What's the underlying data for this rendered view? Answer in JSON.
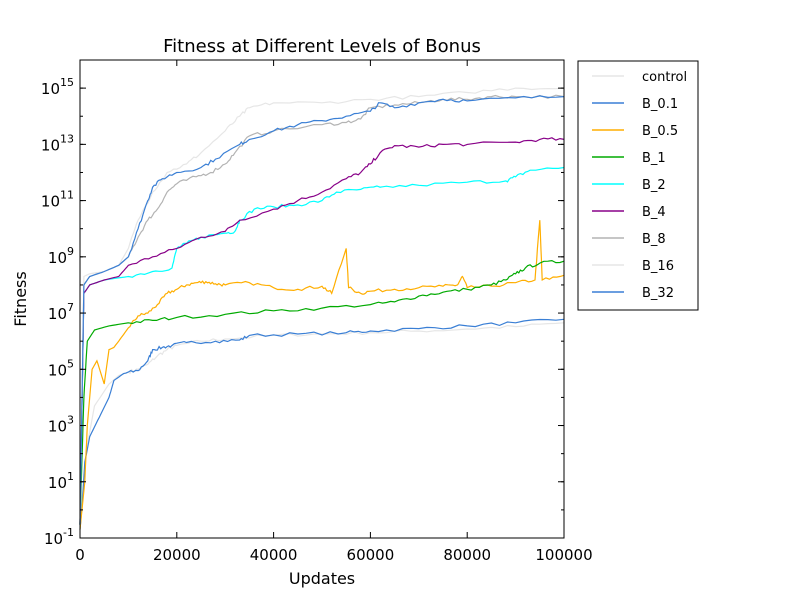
{
  "chart_data": {
    "type": "line",
    "title": "Fitness at Different Levels of Bonus",
    "xlabel": "Updates",
    "ylabel": "Fitness",
    "xlim": [
      0,
      100000
    ],
    "ylim": [
      0.1,
      1e+16
    ],
    "yscale": "log",
    "grid": false,
    "legend_position": "outside-right-top",
    "x_ticks": [
      {
        "value": 0,
        "label": "0"
      },
      {
        "value": 20000,
        "label": "20000"
      },
      {
        "value": 40000,
        "label": "40000"
      },
      {
        "value": 60000,
        "label": "60000"
      },
      {
        "value": 80000,
        "label": "80000"
      },
      {
        "value": 100000,
        "label": "100000"
      }
    ],
    "y_ticks": [
      {
        "value": 0.1,
        "base": "10",
        "exp": "-1"
      },
      {
        "value": 10,
        "base": "10",
        "exp": "1"
      },
      {
        "value": 1000,
        "base": "10",
        "exp": "3"
      },
      {
        "value": 100000,
        "base": "10",
        "exp": "5"
      },
      {
        "value": 10000000,
        "base": "10",
        "exp": "7"
      },
      {
        "value": 1000000000,
        "base": "10",
        "exp": "9"
      },
      {
        "value": 100000000000,
        "base": "10",
        "exp": "11"
      },
      {
        "value": 10000000000000,
        "base": "10",
        "exp": "13"
      },
      {
        "value": 1000000000000000,
        "base": "10",
        "exp": "15"
      }
    ],
    "series": [
      {
        "name": "control",
        "color": "#e6e6e6",
        "points": [
          [
            0,
            0.3
          ],
          [
            500,
            3
          ],
          [
            1500,
            200
          ],
          [
            3000,
            5000
          ],
          [
            6000,
            30000
          ],
          [
            8000,
            60000
          ],
          [
            10000,
            80000
          ],
          [
            12000,
            100000
          ],
          [
            14000,
            150000
          ],
          [
            16000,
            300000
          ],
          [
            18000,
            500000
          ],
          [
            20000,
            700000
          ],
          [
            25000,
            1000000
          ],
          [
            30000,
            1200000
          ],
          [
            40000,
            1600000
          ],
          [
            50000,
            1800000
          ],
          [
            60000,
            2000000
          ],
          [
            70000,
            2300000
          ],
          [
            80000,
            2700000
          ],
          [
            90000,
            3300000
          ],
          [
            100000,
            4500000
          ]
        ]
      },
      {
        "name": "B_0.1",
        "color": "#3a7fd5",
        "points": [
          [
            0,
            0.2
          ],
          [
            500,
            2
          ],
          [
            1000,
            50
          ],
          [
            2000,
            400
          ],
          [
            4000,
            2000
          ],
          [
            6000,
            10000
          ],
          [
            7000,
            40000
          ],
          [
            9000,
            70000
          ],
          [
            12000,
            90000
          ],
          [
            14000,
            200000
          ],
          [
            15000,
            500000
          ],
          [
            17000,
            600000
          ],
          [
            19000,
            700000
          ],
          [
            22000,
            900000
          ],
          [
            28000,
            1000000
          ],
          [
            33000,
            1100000
          ],
          [
            35000,
            1600000
          ],
          [
            45000,
            1800000
          ],
          [
            55000,
            2000000
          ],
          [
            60000,
            2300000
          ],
          [
            70000,
            2800000
          ],
          [
            80000,
            3500000
          ],
          [
            90000,
            4500000
          ],
          [
            100000,
            6000000
          ]
        ]
      },
      {
        "name": "B_0.5",
        "color": "#ffae00",
        "points": [
          [
            0,
            0.2
          ],
          [
            1000,
            10
          ],
          [
            1500,
            1000
          ],
          [
            2500,
            100000
          ],
          [
            3500,
            200000
          ],
          [
            5000,
            30000
          ],
          [
            6000,
            500000
          ],
          [
            7000,
            600000
          ],
          [
            8000,
            1000000
          ],
          [
            10000,
            3000000
          ],
          [
            12000,
            8000000
          ],
          [
            14000,
            10000000
          ],
          [
            16000,
            20000000
          ],
          [
            18000,
            50000000
          ],
          [
            20000,
            70000000
          ],
          [
            22000,
            100000000
          ],
          [
            24000,
            120000000
          ],
          [
            26000,
            130000000
          ],
          [
            28000,
            110000000
          ],
          [
            30000,
            100000000
          ],
          [
            35000,
            120000000
          ],
          [
            40000,
            80000000
          ],
          [
            45000,
            70000000
          ],
          [
            50000,
            90000000
          ],
          [
            52000,
            50000000
          ],
          [
            55000,
            2000000000
          ],
          [
            55500,
            80000000
          ],
          [
            58000,
            50000000
          ],
          [
            60000,
            60000000
          ],
          [
            65000,
            70000000
          ],
          [
            70000,
            80000000
          ],
          [
            75000,
            90000000
          ],
          [
            78000,
            100000000
          ],
          [
            79000,
            200000000
          ],
          [
            80000,
            80000000
          ],
          [
            85000,
            90000000
          ],
          [
            90000,
            120000000
          ],
          [
            94000,
            150000000
          ],
          [
            95000,
            20000000000
          ],
          [
            95500,
            150000000
          ],
          [
            100000,
            220000000
          ]
        ]
      },
      {
        "name": "B_1",
        "color": "#00aa00",
        "points": [
          [
            0,
            0.3
          ],
          [
            800,
            10000
          ],
          [
            1500,
            1000000
          ],
          [
            3000,
            2500000
          ],
          [
            6000,
            3500000
          ],
          [
            10000,
            4500000
          ],
          [
            15000,
            5500000
          ],
          [
            20000,
            7000000
          ],
          [
            30000,
            9000000
          ],
          [
            40000,
            12000000
          ],
          [
            50000,
            15000000
          ],
          [
            60000,
            20000000
          ],
          [
            65000,
            25000000
          ],
          [
            70000,
            40000000
          ],
          [
            75000,
            55000000
          ],
          [
            80000,
            70000000
          ],
          [
            85000,
            100000000
          ],
          [
            88000,
            150000000
          ],
          [
            90000,
            250000000
          ],
          [
            92000,
            400000000
          ],
          [
            95000,
            600000000
          ],
          [
            100000,
            700000000
          ]
        ]
      },
      {
        "name": "B_2",
        "color": "#00ffff",
        "points": [
          [
            0,
            0.3
          ],
          [
            800,
            50000000
          ],
          [
            2000,
            100000000
          ],
          [
            5000,
            150000000
          ],
          [
            10000,
            200000000
          ],
          [
            15000,
            300000000
          ],
          [
            19000,
            400000000
          ],
          [
            20000,
            2000000000
          ],
          [
            22000,
            3000000000
          ],
          [
            25000,
            5000000000
          ],
          [
            30000,
            7000000000
          ],
          [
            32000,
            8000000000
          ],
          [
            33000,
            20000000000
          ],
          [
            36000,
            50000000000
          ],
          [
            40000,
            60000000000
          ],
          [
            45000,
            70000000000
          ],
          [
            50000,
            100000000000
          ],
          [
            53000,
            200000000000
          ],
          [
            58000,
            250000000000
          ],
          [
            62000,
            300000000000
          ],
          [
            70000,
            350000000000
          ],
          [
            80000,
            450000000000
          ],
          [
            88000,
            500000000000
          ],
          [
            90000,
            700000000000
          ],
          [
            93000,
            1200000000000
          ],
          [
            100000,
            1500000000000
          ]
        ]
      },
      {
        "name": "B_4",
        "color": "#880088",
        "points": [
          [
            0,
            0.3
          ],
          [
            800,
            50000000
          ],
          [
            2000,
            100000000
          ],
          [
            5000,
            150000000
          ],
          [
            8000,
            200000000
          ],
          [
            10000,
            500000000
          ],
          [
            15000,
            1000000000
          ],
          [
            20000,
            2000000000
          ],
          [
            25000,
            5000000000
          ],
          [
            30000,
            8000000000
          ],
          [
            33000,
            20000000000
          ],
          [
            40000,
            50000000000
          ],
          [
            45000,
            100000000000
          ],
          [
            50000,
            200000000000
          ],
          [
            55000,
            600000000000
          ],
          [
            58000,
            1000000000000
          ],
          [
            60000,
            2000000000000
          ],
          [
            62000,
            5000000000000
          ],
          [
            65000,
            9000000000000
          ],
          [
            70000,
            8000000000000
          ],
          [
            75000,
            10000000000000
          ],
          [
            80000,
            10000000000000
          ],
          [
            90000,
            12000000000000
          ],
          [
            95000,
            15000000000000
          ],
          [
            100000,
            15000000000000
          ]
        ]
      },
      {
        "name": "B_8",
        "color": "#b3b3b3",
        "points": [
          [
            0,
            0.3
          ],
          [
            800,
            100000000
          ],
          [
            2000,
            200000000
          ],
          [
            5000,
            300000000
          ],
          [
            8000,
            500000000
          ],
          [
            10000,
            1000000000
          ],
          [
            12000,
            5000000000
          ],
          [
            14000,
            20000000000
          ],
          [
            16000,
            50000000000
          ],
          [
            18000,
            200000000000
          ],
          [
            20000,
            400000000000
          ],
          [
            24000,
            700000000000
          ],
          [
            27000,
            1000000000000
          ],
          [
            30000,
            2000000000000
          ],
          [
            32000,
            5000000000000
          ],
          [
            35000,
            20000000000000
          ],
          [
            40000,
            30000000000000
          ],
          [
            50000,
            50000000000000
          ],
          [
            55000,
            60000000000000
          ],
          [
            58000,
            80000000000000
          ],
          [
            60000,
            200000000000000
          ],
          [
            65000,
            250000000000000
          ],
          [
            70000,
            300000000000000
          ],
          [
            75000,
            400000000000000
          ],
          [
            80000,
            400000000000000
          ],
          [
            85000,
            500000000000000
          ],
          [
            90000,
            500000000000000
          ],
          [
            100000,
            500000000000000
          ]
        ]
      },
      {
        "name": "B_16",
        "color": "#e6e6e6",
        "points": [
          [
            0,
            0.3
          ],
          [
            800,
            200000000
          ],
          [
            2000,
            250000000
          ],
          [
            5000,
            300000000
          ],
          [
            8000,
            500000000
          ],
          [
            10000,
            2000000000
          ],
          [
            12000,
            20000000000
          ],
          [
            15000,
            200000000000
          ],
          [
            18000,
            1000000000000
          ],
          [
            22000,
            2000000000000
          ],
          [
            25000,
            5000000000000
          ],
          [
            30000,
            30000000000000
          ],
          [
            33000,
            100000000000000
          ],
          [
            35000,
            200000000000000
          ],
          [
            40000,
            300000000000000
          ],
          [
            50000,
            300000000000000
          ],
          [
            60000,
            400000000000000
          ],
          [
            70000,
            500000000000000
          ],
          [
            80000,
            700000000000000
          ],
          [
            90000,
            1000000000000000
          ],
          [
            100000,
            1000000000000000
          ]
        ]
      },
      {
        "name": "B_32",
        "color": "#3a7fd5",
        "points": [
          [
            0,
            0.3
          ],
          [
            800,
            100000000
          ],
          [
            2000,
            200000000
          ],
          [
            5000,
            300000000
          ],
          [
            8000,
            500000000
          ],
          [
            10000,
            1000000000
          ],
          [
            12000,
            10000000000
          ],
          [
            14000,
            100000000000
          ],
          [
            15000,
            300000000000
          ],
          [
            17000,
            600000000000
          ],
          [
            20000,
            1000000000000
          ],
          [
            25000,
            1500000000000
          ],
          [
            28000,
            3000000000000
          ],
          [
            33000,
            10000000000000
          ],
          [
            35000,
            15000000000000
          ],
          [
            40000,
            30000000000000
          ],
          [
            45000,
            50000000000000
          ],
          [
            50000,
            70000000000000
          ],
          [
            55000,
            100000000000000
          ],
          [
            60000,
            150000000000000
          ],
          [
            62000,
            300000000000000
          ],
          [
            65000,
            200000000000000
          ],
          [
            70000,
            300000000000000
          ],
          [
            75000,
            400000000000000
          ],
          [
            80000,
            350000000000000
          ],
          [
            90000,
            450000000000000
          ],
          [
            100000,
            500000000000000
          ]
        ]
      }
    ]
  }
}
